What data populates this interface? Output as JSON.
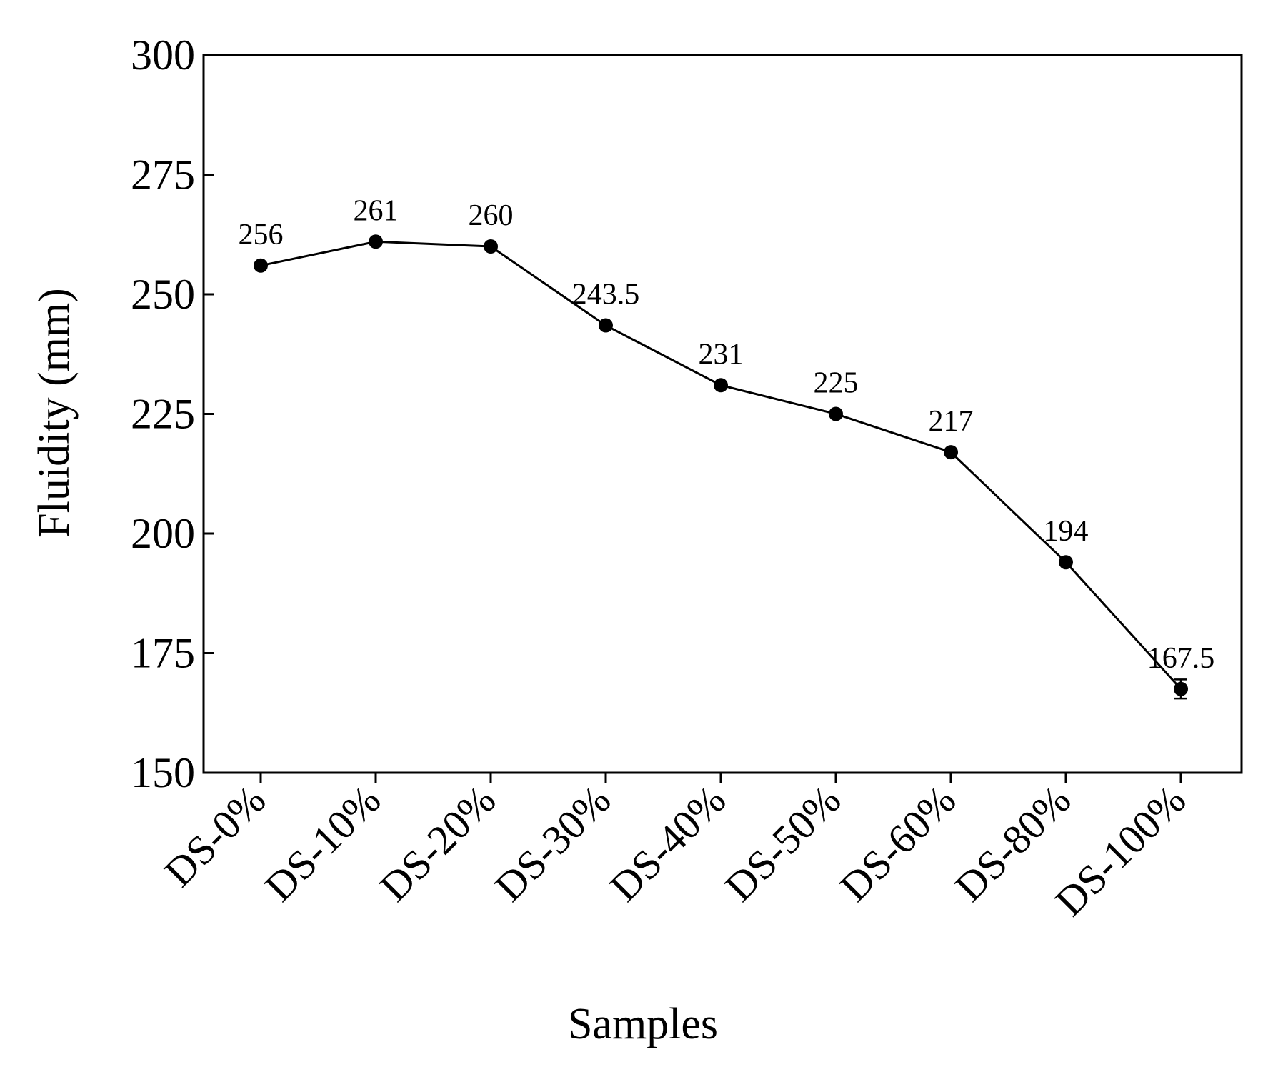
{
  "chart_data": {
    "type": "line",
    "categories": [
      "DS-0%",
      "DS-10%",
      "DS-20%",
      "DS-30%",
      "DS-40%",
      "DS-50%",
      "DS-60%",
      "DS-80%",
      "DS-100%"
    ],
    "series": [
      {
        "values": [
          256,
          261,
          260,
          243.5,
          231,
          225,
          217,
          194,
          167.5
        ],
        "data_labels": [
          "256",
          "261",
          "260",
          "243.5",
          "231",
          "225",
          "217",
          "194",
          "167.5"
        ],
        "error": [
          0,
          0,
          0,
          0,
          0,
          0,
          0,
          0,
          2
        ]
      }
    ],
    "xlabel": "Samples",
    "ylabel": "Fluidity (mm)",
    "ylim": [
      150,
      300
    ],
    "yticks": [
      150,
      175,
      200,
      225,
      250,
      275,
      300
    ],
    "grid": false,
    "legend": "none",
    "colors": {
      "line": "#000000",
      "marker": "#000000"
    }
  }
}
